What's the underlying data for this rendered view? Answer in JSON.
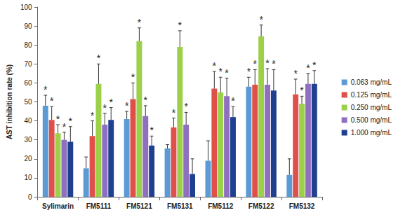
{
  "chart_data": {
    "type": "bar",
    "y_label": "AST inhibition rate (%)",
    "categories": [
      "Sylimarin",
      "FM5111",
      "FM5121",
      "FM5131",
      "FM5112",
      "FM5122",
      "FM5132"
    ],
    "series": [
      {
        "name": "0.063 mg/mL",
        "color": "#5B9BD5",
        "values": [
          48,
          15,
          41,
          25.5,
          19,
          58,
          11.5
        ],
        "errors": [
          5.5,
          6,
          4,
          2,
          10.5,
          5,
          8.5
        ],
        "significant": [
          true,
          false,
          true,
          false,
          false,
          true,
          false
        ]
      },
      {
        "name": "0.125 mg/mL",
        "color": "#E0504A",
        "values": [
          40.5,
          32,
          51.5,
          36.5,
          57,
          59,
          54
        ],
        "errors": [
          7,
          8,
          8.5,
          5,
          9,
          8,
          8
        ],
        "significant": [
          true,
          true,
          true,
          true,
          true,
          true,
          true
        ]
      },
      {
        "name": "0.250 mg/mL",
        "color": "#9BD048",
        "values": [
          33.5,
          59.5,
          82,
          79,
          55,
          84.5,
          49
        ],
        "errors": [
          4.5,
          10.5,
          7,
          8.5,
          8,
          6,
          4
        ],
        "significant": [
          true,
          true,
          true,
          true,
          true,
          true,
          true
        ]
      },
      {
        "name": "0.500 mg/mL",
        "color": "#8F6FC0",
        "values": [
          30,
          38,
          42.5,
          38,
          53,
          59,
          59.5
        ],
        "errors": [
          4,
          6,
          5.5,
          6.5,
          9.5,
          8.5,
          5.5
        ],
        "significant": [
          true,
          true,
          true,
          true,
          true,
          true,
          true
        ]
      },
      {
        "name": "1.000 mg/mL",
        "color": "#1F3F8F",
        "values": [
          29,
          40.5,
          27,
          12,
          42,
          56,
          59.5
        ],
        "errors": [
          8,
          6.5,
          5,
          8,
          5.5,
          11,
          7
        ],
        "significant": [
          true,
          true,
          true,
          false,
          true,
          true,
          true
        ]
      }
    ],
    "annotation": "*",
    "ylim": [
      0,
      100
    ],
    "yticks": [
      0,
      10,
      20,
      30,
      40,
      50,
      60,
      70,
      80,
      90,
      100
    ],
    "grid": false,
    "legend": "right"
  }
}
